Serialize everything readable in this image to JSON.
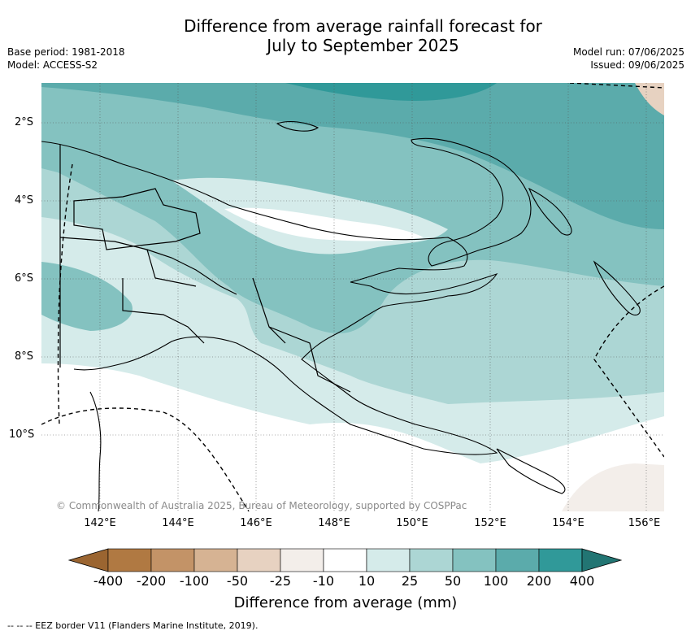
{
  "title_line1": "Difference from average rainfall forecast for",
  "title_line2": "July to September 2025",
  "base_period": "Base period: 1981-2018",
  "model": "Model: ACCESS-S2",
  "model_run": "Model run: 07/06/2025",
  "issued": "Issued: 09/06/2025",
  "copyright": "© Commonwealth of Australia 2025, Bureau of Meteorology, supported by COSPPac",
  "lon_labels": [
    "142°E",
    "144°E",
    "146°E",
    "148°E",
    "150°E",
    "152°E",
    "154°E",
    "156°E"
  ],
  "lat_labels": [
    "2°S",
    "4°S",
    "6°S",
    "8°S",
    "10°S"
  ],
  "colorbar": {
    "label": "Difference from average (mm)",
    "ticks": [
      "-400",
      "-200",
      "-100",
      "-50",
      "-25",
      "-10",
      "10",
      "25",
      "50",
      "100",
      "200",
      "400"
    ],
    "colors": [
      "#9b6531",
      "#b07942",
      "#c39367",
      "#d6b393",
      "#e7d2c1",
      "#f3eeea",
      "#ffffff",
      "#d5ebea",
      "#acd6d4",
      "#84c2c0",
      "#5babab",
      "#309999",
      "#227573"
    ]
  },
  "footer": "--  --  -- EEZ border V11 (Flanders Marine Institute, 2019)."
}
